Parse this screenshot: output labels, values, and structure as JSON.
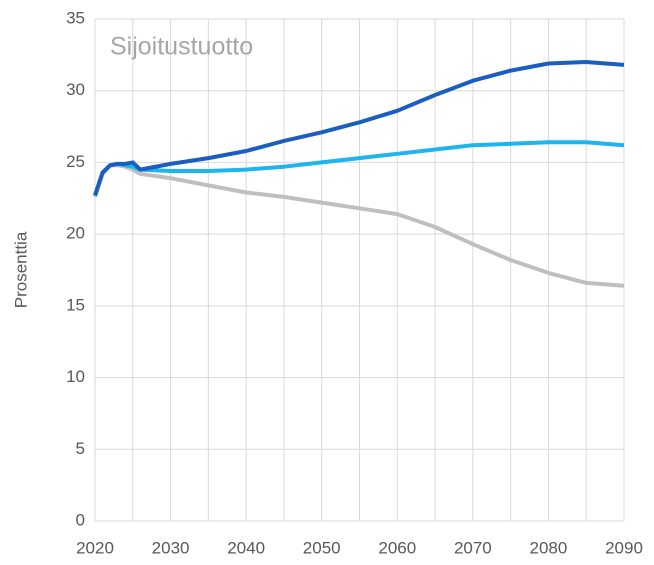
{
  "chart_data": {
    "type": "line",
    "title": "Sijoitustuotto",
    "y_label": "Prosenttia",
    "x": [
      2020,
      2021,
      2022,
      2023,
      2024,
      2025,
      2026,
      2030,
      2035,
      2040,
      2045,
      2050,
      2055,
      2060,
      2065,
      2070,
      2075,
      2080,
      2085,
      2090
    ],
    "series": [
      {
        "color": "#1a5fbf",
        "values": [
          22.7,
          24.3,
          24.8,
          24.9,
          24.9,
          25.0,
          24.5,
          24.9,
          25.3,
          25.8,
          26.5,
          27.1,
          27.8,
          28.6,
          29.7,
          30.7,
          31.4,
          31.9,
          32.0,
          31.8
        ]
      },
      {
        "color": "#1eb4ee",
        "values": [
          22.7,
          24.3,
          24.8,
          24.9,
          24.8,
          24.7,
          24.5,
          24.4,
          24.4,
          24.5,
          24.7,
          25.0,
          25.3,
          25.6,
          25.9,
          26.2,
          26.3,
          26.4,
          26.4,
          26.2
        ]
      },
      {
        "color": "#bfbfbf",
        "values": [
          22.6,
          24.2,
          24.8,
          24.8,
          24.7,
          24.5,
          24.2,
          23.9,
          23.4,
          22.9,
          22.6,
          22.2,
          21.8,
          21.4,
          20.5,
          19.3,
          18.2,
          17.3,
          16.6,
          16.4
        ]
      }
    ],
    "xlim": [
      2020,
      2090
    ],
    "xticks": [
      2020,
      2030,
      2040,
      2050,
      2060,
      2070,
      2080,
      2090
    ],
    "x_grid": [
      2020,
      2025,
      2030,
      2035,
      2040,
      2045,
      2050,
      2055,
      2060,
      2065,
      2070,
      2075,
      2080,
      2085,
      2090
    ],
    "ylim": [
      0,
      35
    ],
    "yticks": [
      0,
      5,
      10,
      15,
      20,
      25,
      30,
      35
    ],
    "grid": true
  }
}
